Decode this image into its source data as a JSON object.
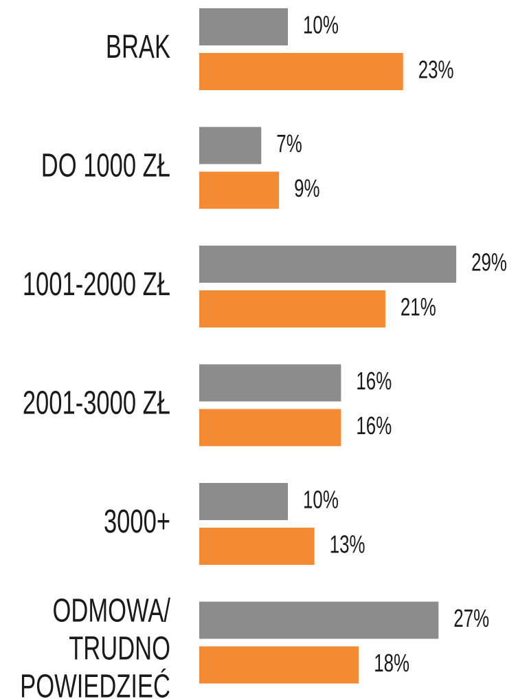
{
  "chart_data": {
    "type": "bar",
    "orientation": "horizontal",
    "categories": [
      "BRAK",
      "DO 1000 ZŁ",
      "1001-2000 ZŁ",
      "2001-3000 ZŁ",
      "3000+",
      "ODMOWA/\nTRUDNO\nPOWIEDZIEĆ"
    ],
    "series": [
      {
        "color": "#8c8c8c",
        "values": [
          10,
          7,
          29,
          16,
          10,
          27
        ],
        "value_labels": [
          "10%",
          "7%",
          "29%",
          "16%",
          "10%",
          "27%"
        ]
      },
      {
        "color": "#f58a35",
        "values": [
          23,
          9,
          21,
          16,
          13,
          18
        ],
        "value_labels": [
          "23%",
          "9%",
          "21%",
          "16%",
          "13%",
          "18%"
        ]
      }
    ]
  }
}
